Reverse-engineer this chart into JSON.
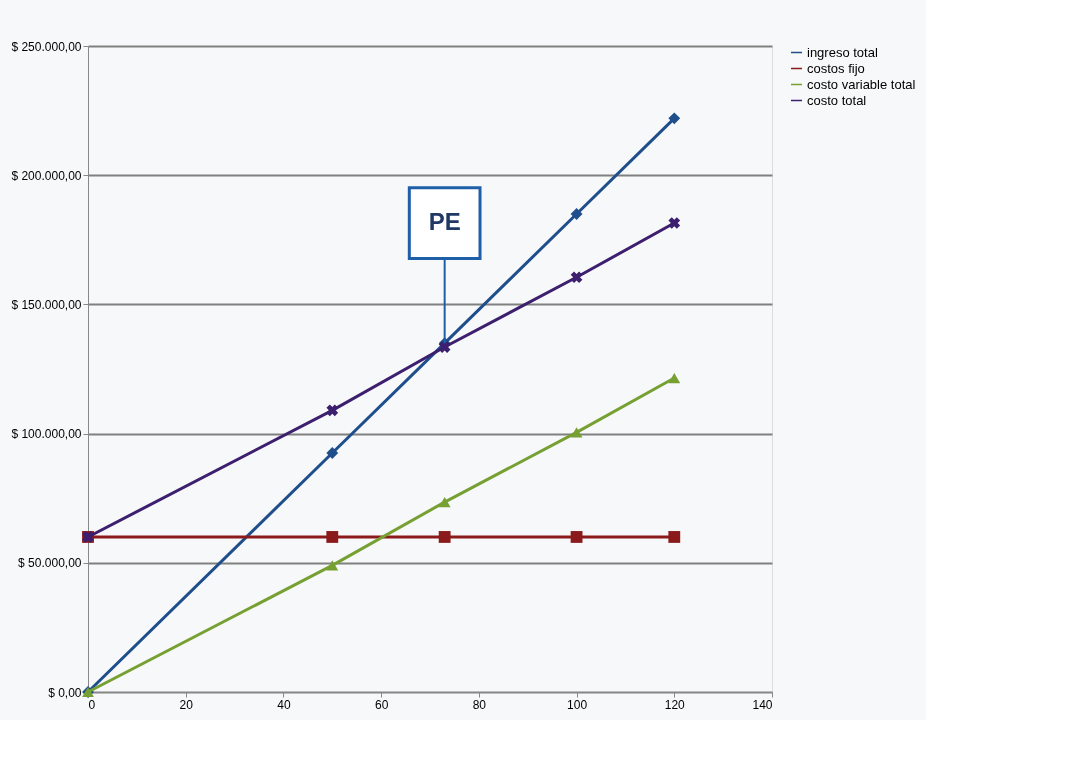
{
  "chart_data": {
    "type": "line",
    "x": [
      0,
      50,
      73,
      100,
      120
    ],
    "series": [
      {
        "name": "ingreso total",
        "color": "#1f4e8c",
        "marker": "diamond",
        "values": [
          0,
          92500,
          135000,
          185000,
          222000
        ]
      },
      {
        "name": "costos fijo",
        "color": "#8b1a1a",
        "marker": "square",
        "values": [
          60000,
          60000,
          60000,
          60000,
          60000
        ]
      },
      {
        "name": "costo variable total",
        "color": "#77a033",
        "marker": "triangle",
        "values": [
          0,
          49000,
          73500,
          100500,
          121500
        ]
      },
      {
        "name": "costo total",
        "color": "#3c1f6e",
        "marker": "cross",
        "values": [
          60000,
          109000,
          133500,
          160500,
          181500
        ]
      }
    ],
    "xlim": [
      0,
      140
    ],
    "xticks": [
      0,
      20,
      40,
      60,
      80,
      100,
      120,
      140
    ],
    "ylim": [
      0,
      250000
    ],
    "yticks": [
      {
        "value": 0,
        "label": "$ 0,00"
      },
      {
        "value": 50000,
        "label": "$ 50.000,00"
      },
      {
        "value": 100000,
        "label": "$ 100.000,00"
      },
      {
        "value": 150000,
        "label": "$ 150.000,00"
      },
      {
        "value": 200000,
        "label": "$ 200.000,00"
      },
      {
        "value": 250000,
        "label": "$ 250.000,00"
      }
    ],
    "annotations": [
      {
        "text": "PE",
        "x": 73,
        "y": 135000
      }
    ],
    "grid": "y",
    "legend": "right"
  }
}
